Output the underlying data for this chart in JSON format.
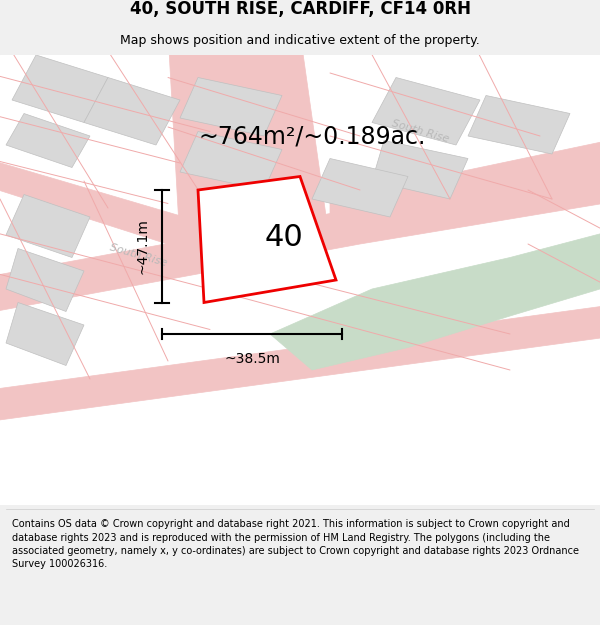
{
  "title": "40, SOUTH RISE, CARDIFF, CF14 0RH",
  "subtitle": "Map shows position and indicative extent of the property.",
  "area_text": "~764m²/~0.189ac.",
  "property_number": "40",
  "dim_width": "~38.5m",
  "dim_height": "~47.1m",
  "footer": "Contains OS data © Crown copyright and database right 2021. This information is subject to Crown copyright and database rights 2023 and is reproduced with the permission of HM Land Registry. The polygons (including the associated geometry, namely x, y co-ordinates) are subject to Crown copyright and database rights 2023 Ordnance Survey 100026316.",
  "bg_color": "#f0f0f0",
  "map_bg": "#ffffff",
  "road_color": "#f2c4c4",
  "building_fill": "#d8d8d8",
  "building_edge": "#c0c0c0",
  "green_fill": "#c8dcc8",
  "plot_fill": "#ffffff",
  "plot_edge": "#ee0000",
  "plot_lw": 2.0,
  "road_label_color": "#b8b8b8",
  "cadastral_color": "#f0aaaa",
  "title_fontsize": 12,
  "subtitle_fontsize": 9,
  "area_fontsize": 17,
  "number_fontsize": 22,
  "dim_fontsize": 10,
  "road_label_fontsize": 8,
  "footer_fontsize": 7
}
